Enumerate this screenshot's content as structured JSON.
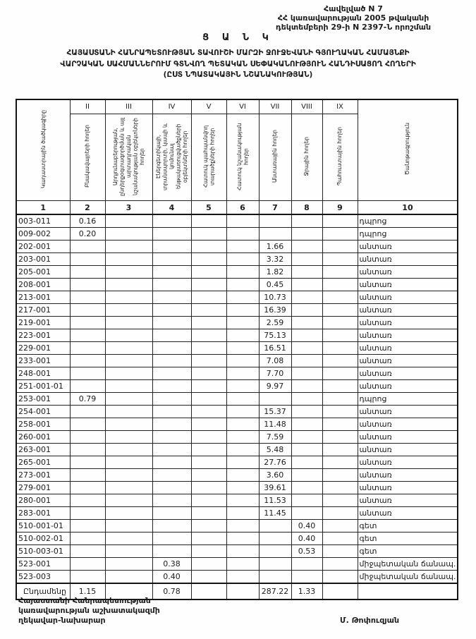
{
  "header": {
    "line1": "Հավելված N 7",
    "line2": "ՀՀ կառավարության 2005 թվականի",
    "line3": "դեկտեմբերի 29-ի N 2397-Ն որոշման"
  },
  "title": "Ց Ա Ն Կ",
  "subtitle": {
    "line1": "ՀԱՅԱՍՏԱՆԻ ՀԱՆՐԱՊԵՏՈՒԹՅԱՆ ՏԱՎՈՒՇԻ ՄԱՐԶԻ ՋՈՒՋԵՎԱՆԻ ԳՅՈՒՂԱԿԱՆ ՀԱՄԱՅՆՔԻ",
    "line2": "ՎԱՐՉԱԿԱՆ ՍԱՀՄԱՆՆԵՐՈՒՄ ԳՏՆՎՈՂ ՊԵՏԱԿԱՆ ՍԵՓԱԿԱՆՈՒԹՅՈՒՆ ՀԱՆԴԻՍԱՑՈՂ ՀՈՂԵՐԻ",
    "line3": "(ԸՍՏ ՆՊԱՏԱԿԱՅԻՆ ՆՇԱՆԱԿՈՒԹՅԱՆ)"
  },
  "table": {
    "roman_numerals": [
      "II",
      "III",
      "IV",
      "V",
      "VI",
      "VII",
      "VIII",
      "IX"
    ],
    "column_headers": [
      "Կադաստրային ծածկագիրը",
      "Բնակավայրերի հողեր",
      "Արդյունաբերության, ընդերքօգտագործման և այլ արտադրական նշանակության օբյեկտների հողեր",
      "Էներգետիկայի, տրանսպորտի, կապի և կոմունալ ենթակառուցվածքների օբյեկտների հողեր",
      "Հատուկ պահպանվող տարածքների հողեր",
      "Հատուկ նշանակության հողեր",
      "Անտառային հողեր",
      "Ջրային հողեր",
      "Պահուստային հողեր",
      "Ծանոթագրություն"
    ],
    "column_numbers": [
      "1",
      "2",
      "3",
      "4",
      "5",
      "6",
      "7",
      "8",
      "9",
      "10"
    ],
    "rows": [
      {
        "code": "003-011",
        "values": [
          "0.16",
          "",
          "",
          "",
          "",
          "",
          "",
          ""
        ],
        "note": "դպրոց"
      },
      {
        "code": "009-002",
        "values": [
          "0.20",
          "",
          "",
          "",
          "",
          "",
          "",
          ""
        ],
        "note": "դպրոց"
      },
      {
        "code": "202-001",
        "values": [
          "",
          "",
          "",
          "",
          "",
          "1.66",
          "",
          ""
        ],
        "note": "անտառ"
      },
      {
        "code": "203-001",
        "values": [
          "",
          "",
          "",
          "",
          "",
          "3.32",
          "",
          ""
        ],
        "note": "անտառ"
      },
      {
        "code": "205-001",
        "values": [
          "",
          "",
          "",
          "",
          "",
          "1.82",
          "",
          ""
        ],
        "note": "անտառ"
      },
      {
        "code": "208-001",
        "values": [
          "",
          "",
          "",
          "",
          "",
          "0.45",
          "",
          ""
        ],
        "note": "անտառ"
      },
      {
        "code": "213-001",
        "values": [
          "",
          "",
          "",
          "",
          "",
          "10.73",
          "",
          ""
        ],
        "note": "անտառ"
      },
      {
        "code": "217-001",
        "values": [
          "",
          "",
          "",
          "",
          "",
          "16.39",
          "",
          ""
        ],
        "note": "անտառ"
      },
      {
        "code": "219-001",
        "values": [
          "",
          "",
          "",
          "",
          "",
          "2.59",
          "",
          ""
        ],
        "note": "անտառ"
      },
      {
        "code": "223-001",
        "values": [
          "",
          "",
          "",
          "",
          "",
          "75.13",
          "",
          ""
        ],
        "note": "անտառ"
      },
      {
        "code": "229-001",
        "values": [
          "",
          "",
          "",
          "",
          "",
          "16.51",
          "",
          ""
        ],
        "note": "անտառ"
      },
      {
        "code": "233-001",
        "values": [
          "",
          "",
          "",
          "",
          "",
          "7.08",
          "",
          ""
        ],
        "note": "անտառ"
      },
      {
        "code": "248-001",
        "values": [
          "",
          "",
          "",
          "",
          "",
          "7.70",
          "",
          ""
        ],
        "note": "անտառ"
      },
      {
        "code": "251-001-01",
        "values": [
          "",
          "",
          "",
          "",
          "",
          "9.97",
          "",
          ""
        ],
        "note": "անտառ"
      },
      {
        "code": "253-001",
        "values": [
          "0.79",
          "",
          "",
          "",
          "",
          "",
          "",
          ""
        ],
        "note": "դպրոց"
      },
      {
        "code": "254-001",
        "values": [
          "",
          "",
          "",
          "",
          "",
          "15.37",
          "",
          ""
        ],
        "note": "անտառ"
      },
      {
        "code": "258-001",
        "values": [
          "",
          "",
          "",
          "",
          "",
          "11.48",
          "",
          ""
        ],
        "note": "անտառ"
      },
      {
        "code": "260-001",
        "values": [
          "",
          "",
          "",
          "",
          "",
          "7.59",
          "",
          ""
        ],
        "note": "անտառ"
      },
      {
        "code": "263-001",
        "values": [
          "",
          "",
          "",
          "",
          "",
          "5.48",
          "",
          ""
        ],
        "note": "անտառ"
      },
      {
        "code": "265-001",
        "values": [
          "",
          "",
          "",
          "",
          "",
          "27.76",
          "",
          ""
        ],
        "note": "անտառ"
      },
      {
        "code": "273-001",
        "values": [
          "",
          "",
          "",
          "",
          "",
          "3.60",
          "",
          ""
        ],
        "note": "անտառ"
      },
      {
        "code": "279-001",
        "values": [
          "",
          "",
          "",
          "",
          "",
          "39.61",
          "",
          ""
        ],
        "note": "անտառ"
      },
      {
        "code": "280-001",
        "values": [
          "",
          "",
          "",
          "",
          "",
          "11.53",
          "",
          ""
        ],
        "note": "անտառ"
      },
      {
        "code": "283-001",
        "values": [
          "",
          "",
          "",
          "",
          "",
          "11.45",
          "",
          ""
        ],
        "note": "անտառ"
      },
      {
        "code": "510-001-01",
        "values": [
          "",
          "",
          "",
          "",
          "",
          "",
          "0.40",
          ""
        ],
        "note": "գետ"
      },
      {
        "code": "510-002-01",
        "values": [
          "",
          "",
          "",
          "",
          "",
          "",
          "0.40",
          ""
        ],
        "note": "գետ"
      },
      {
        "code": "510-003-01",
        "values": [
          "",
          "",
          "",
          "",
          "",
          "",
          "0.53",
          ""
        ],
        "note": "գետ"
      },
      {
        "code": "523-001",
        "values": [
          "",
          "",
          "0.38",
          "",
          "",
          "",
          "",
          ""
        ],
        "note": "միջպետական ճանապ."
      },
      {
        "code": "523-003",
        "values": [
          "",
          "",
          "0.40",
          "",
          "",
          "",
          "",
          ""
        ],
        "note": "միջպետական ճանապ."
      }
    ],
    "total": {
      "code": "Ընդամենը",
      "values": [
        "1.15",
        "",
        "0.78",
        "",
        "",
        "287.22",
        "1.33",
        ""
      ],
      "note": ""
    }
  },
  "footer": {
    "line1": "Հայաստանի Հանրապետության",
    "line2": "կառավարության աշխատակազմի",
    "line3": "ղեկավար-նախարար",
    "signature": "Մ. Թոփուզյան"
  }
}
